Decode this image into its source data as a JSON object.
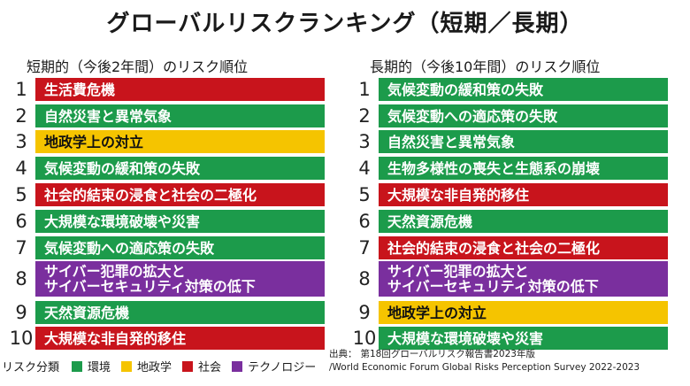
{
  "title": "グローバルリスクランキング（短期／長期）",
  "colors": {
    "environment": "#1c9b4b",
    "geopolitics": "#f5c400",
    "society": "#c8141c",
    "technology": "#7a2f9e"
  },
  "short_term": {
    "heading": "短期的（今後2年間）のリスク順位",
    "items": [
      {
        "rank": "1",
        "label": "生活費危機",
        "category": "society"
      },
      {
        "rank": "2",
        "label": "自然災害と異常気象",
        "category": "environment"
      },
      {
        "rank": "3",
        "label": "地政学上の対立",
        "category": "geopolitics"
      },
      {
        "rank": "4",
        "label": "気候変動の緩和策の失敗",
        "category": "environment"
      },
      {
        "rank": "5",
        "label": "社会的結束の浸食と社会の二極化",
        "category": "society"
      },
      {
        "rank": "6",
        "label": "大規模な環境破壊や災害",
        "category": "environment"
      },
      {
        "rank": "7",
        "label": "気候変動への適応策の失敗",
        "category": "environment"
      },
      {
        "rank": "8",
        "label": "サイバー犯罪の拡大と\nサイバーセキュリティ対策の低下",
        "category": "technology"
      },
      {
        "rank": "9",
        "label": "天然資源危機",
        "category": "environment"
      },
      {
        "rank": "10",
        "label": "大規模な非自発的移住",
        "category": "society"
      }
    ]
  },
  "long_term": {
    "heading": "長期的（今後10年間）のリスク順位",
    "items": [
      {
        "rank": "1",
        "label": "気候変動の緩和策の失敗",
        "category": "environment"
      },
      {
        "rank": "2",
        "label": "気候変動への適応策の失敗",
        "category": "environment"
      },
      {
        "rank": "3",
        "label": "自然災害と異常気象",
        "category": "environment"
      },
      {
        "rank": "4",
        "label": "生物多様性の喪失と生態系の崩壊",
        "category": "environment"
      },
      {
        "rank": "5",
        "label": "大規模な非自発的移住",
        "category": "society"
      },
      {
        "rank": "6",
        "label": "天然資源危機",
        "category": "environment"
      },
      {
        "rank": "7",
        "label": "社会的結束の浸食と社会の二極化",
        "category": "society"
      },
      {
        "rank": "8",
        "label": "サイバー犯罪の拡大と\nサイバーセキュリティ対策の低下",
        "category": "technology"
      },
      {
        "rank": "9",
        "label": "地政学上の対立",
        "category": "geopolitics"
      },
      {
        "rank": "10",
        "label": "大規模な環境破壊や災害",
        "category": "environment"
      }
    ]
  },
  "legend": {
    "title": "リスク分類",
    "items": [
      {
        "label": "環境",
        "category": "environment"
      },
      {
        "label": "地政学",
        "category": "geopolitics"
      },
      {
        "label": "社会",
        "category": "society"
      },
      {
        "label": "テクノロジー",
        "category": "technology"
      }
    ]
  },
  "source": {
    "label": "出典：",
    "line1": "第18回グローバルリスク報告書2023年版",
    "line2": "/World Economic Forum Global Risks Perception Survey 2022-2023"
  }
}
